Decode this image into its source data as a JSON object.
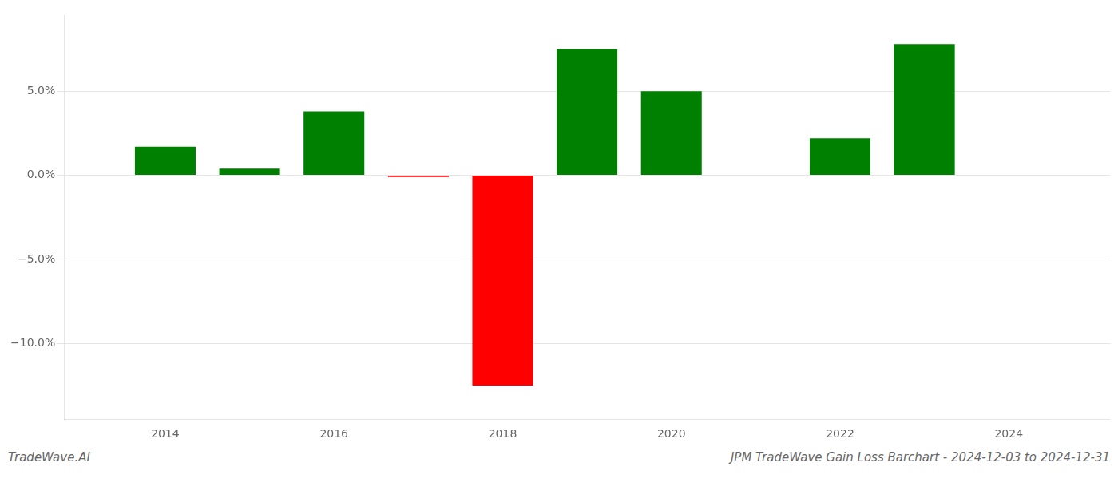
{
  "chart_data": {
    "type": "bar",
    "x": [
      2014,
      2015,
      2016,
      2017,
      2018,
      2019,
      2020,
      2021,
      2022,
      2023
    ],
    "values": [
      0.017,
      0.004,
      0.038,
      -0.001,
      -0.125,
      0.075,
      0.05,
      0.0,
      0.022,
      0.078
    ],
    "colors": [
      "#008000",
      "#008000",
      "#008000",
      "#ff0000",
      "#ff0000",
      "#008000",
      "#008000",
      "#008000",
      "#008000",
      "#008000"
    ],
    "xlim": [
      2012.8,
      2025.2
    ],
    "xticks": [
      2014,
      2016,
      2018,
      2020,
      2022,
      2024
    ],
    "ylim": [
      -0.145,
      0.095
    ],
    "yticks": [
      {
        "value": -0.1,
        "label": "−10.0%"
      },
      {
        "value": -0.05,
        "label": "−5.0%"
      },
      {
        "value": 0.0,
        "label": "0.0%"
      },
      {
        "value": 0.05,
        "label": "5.0%"
      }
    ],
    "grid": "y",
    "annotations": [
      "TradeWave.AI",
      "JPM TradeWave Gain Loss Barchart - 2024-12-03 to 2024-12-31"
    ]
  }
}
